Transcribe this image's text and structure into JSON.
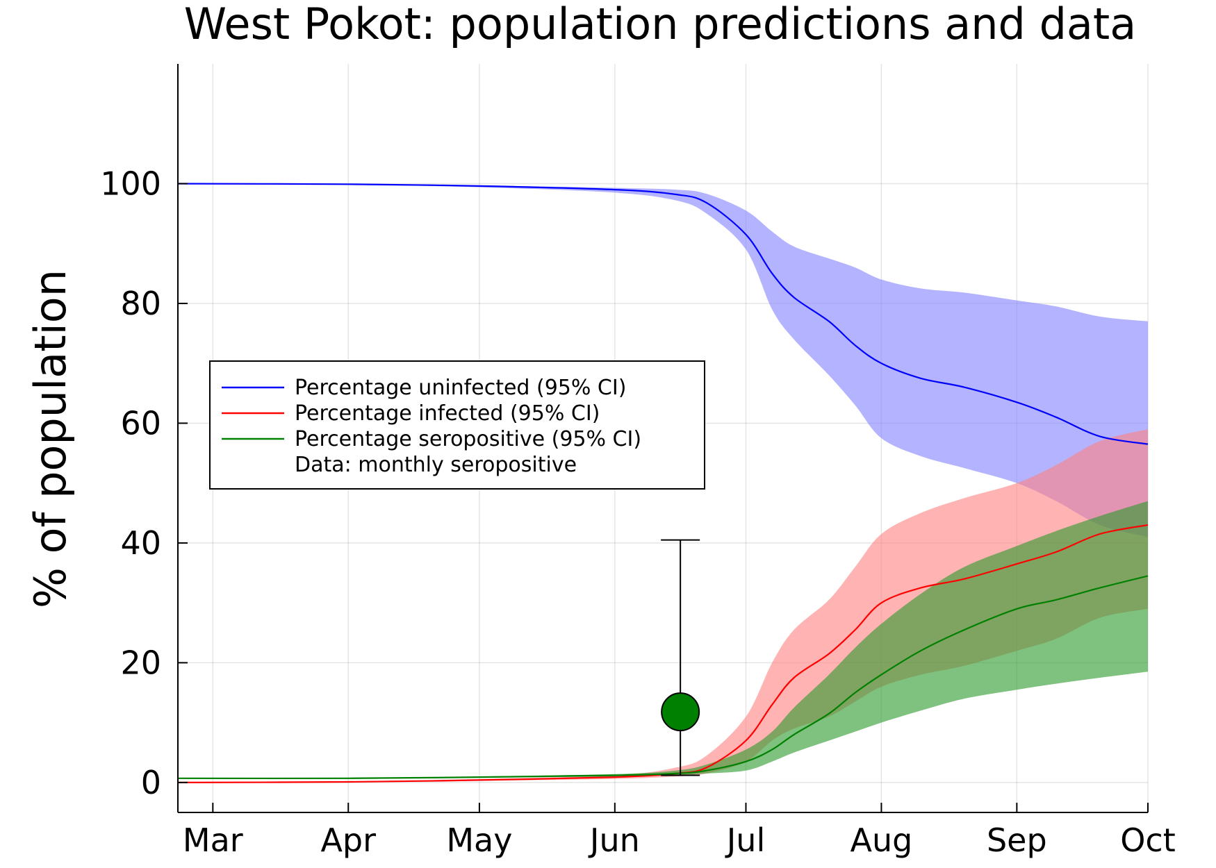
{
  "chart_data": {
    "type": "area",
    "title": "West Pokot: population predictions and data",
    "xlabel": "",
    "ylabel": "% of population",
    "x_unit": "date (2020)",
    "xlim": [
      "2020-02-22",
      "2020-10-01"
    ],
    "ylim": [
      -5,
      120
    ],
    "grid": true,
    "legend_position": "left",
    "x_ticks": [
      {
        "label": "Mar",
        "date": "2020-03-01"
      },
      {
        "label": "Apr",
        "date": "2020-04-01"
      },
      {
        "label": "May",
        "date": "2020-05-01"
      },
      {
        "label": "Jun",
        "date": "2020-06-01"
      },
      {
        "label": "Jul",
        "date": "2020-07-01"
      },
      {
        "label": "Aug",
        "date": "2020-08-01"
      },
      {
        "label": "Sep",
        "date": "2020-09-01"
      },
      {
        "label": "Oct",
        "date": "2020-10-01"
      }
    ],
    "y_ticks": [
      0,
      20,
      40,
      60,
      80,
      100
    ],
    "series": [
      {
        "name": "Percentage uninfected (95% CI)",
        "color": "#0000ff",
        "band_color": "#8080ff",
        "points": [
          {
            "date": "2020-02-22",
            "mean": 100.0,
            "lower": 100.0,
            "upper": 100.0
          },
          {
            "date": "2020-04-01",
            "mean": 99.9,
            "lower": 99.8,
            "upper": 100.0
          },
          {
            "date": "2020-05-01",
            "mean": 99.6,
            "lower": 99.4,
            "upper": 99.7
          },
          {
            "date": "2020-06-01",
            "mean": 99.0,
            "lower": 98.5,
            "upper": 99.3
          },
          {
            "date": "2020-06-15",
            "mean": 98.2,
            "lower": 97.2,
            "upper": 99.0
          },
          {
            "date": "2020-06-22",
            "mean": 96.8,
            "lower": 95.0,
            "upper": 98.3
          },
          {
            "date": "2020-07-01",
            "mean": 91.5,
            "lower": 89.0,
            "upper": 95.5
          },
          {
            "date": "2020-07-07",
            "mean": 85.0,
            "lower": 79.0,
            "upper": 92.0
          },
          {
            "date": "2020-07-12",
            "mean": 81.0,
            "lower": 74.0,
            "upper": 89.5
          },
          {
            "date": "2020-07-20",
            "mean": 77.0,
            "lower": 68.0,
            "upper": 87.5
          },
          {
            "date": "2020-07-26",
            "mean": 73.0,
            "lower": 63.0,
            "upper": 86.0
          },
          {
            "date": "2020-08-01",
            "mean": 70.0,
            "lower": 57.5,
            "upper": 84.0
          },
          {
            "date": "2020-08-10",
            "mean": 67.5,
            "lower": 54.5,
            "upper": 82.5
          },
          {
            "date": "2020-08-20",
            "mean": 66.0,
            "lower": 52.5,
            "upper": 81.8
          },
          {
            "date": "2020-09-01",
            "mean": 63.5,
            "lower": 50.0,
            "upper": 80.5
          },
          {
            "date": "2020-09-10",
            "mean": 61.0,
            "lower": 47.0,
            "upper": 79.5
          },
          {
            "date": "2020-09-20",
            "mean": 57.8,
            "lower": 43.0,
            "upper": 77.8
          },
          {
            "date": "2020-10-01",
            "mean": 56.5,
            "lower": 41.0,
            "upper": 77.0
          }
        ]
      },
      {
        "name": "Percentage infected (95% CI)",
        "color": "#ff0000",
        "band_color": "#ff8080",
        "points": [
          {
            "date": "2020-02-22",
            "mean": 0.0,
            "lower": 0.0,
            "upper": 0.0
          },
          {
            "date": "2020-04-01",
            "mean": 0.1,
            "lower": 0.05,
            "upper": 0.2
          },
          {
            "date": "2020-05-01",
            "mean": 0.4,
            "lower": 0.3,
            "upper": 0.6
          },
          {
            "date": "2020-06-01",
            "mean": 0.9,
            "lower": 0.6,
            "upper": 1.2
          },
          {
            "date": "2020-06-15",
            "mean": 1.5,
            "lower": 1.0,
            "upper": 2.5
          },
          {
            "date": "2020-06-22",
            "mean": 2.5,
            "lower": 1.5,
            "upper": 4.5
          },
          {
            "date": "2020-07-01",
            "mean": 7.0,
            "lower": 3.5,
            "upper": 11.0
          },
          {
            "date": "2020-07-07",
            "mean": 13.0,
            "lower": 7.0,
            "upper": 20.0
          },
          {
            "date": "2020-07-12",
            "mean": 17.5,
            "lower": 9.0,
            "upper": 25.5
          },
          {
            "date": "2020-07-20",
            "mean": 21.5,
            "lower": 11.0,
            "upper": 30.5
          },
          {
            "date": "2020-07-26",
            "mean": 25.5,
            "lower": 13.5,
            "upper": 36.0
          },
          {
            "date": "2020-08-01",
            "mean": 30.0,
            "lower": 16.0,
            "upper": 41.5
          },
          {
            "date": "2020-08-10",
            "mean": 32.5,
            "lower": 18.0,
            "upper": 45.0
          },
          {
            "date": "2020-08-20",
            "mean": 34.0,
            "lower": 19.5,
            "upper": 47.5
          },
          {
            "date": "2020-09-01",
            "mean": 36.5,
            "lower": 22.0,
            "upper": 50.0
          },
          {
            "date": "2020-09-10",
            "mean": 38.5,
            "lower": 24.0,
            "upper": 53.0
          },
          {
            "date": "2020-09-20",
            "mean": 41.5,
            "lower": 27.5,
            "upper": 57.0
          },
          {
            "date": "2020-10-01",
            "mean": 43.0,
            "lower": 29.0,
            "upper": 59.0
          }
        ]
      },
      {
        "name": "Percentage seropositive (95% CI)",
        "color": "#008000",
        "band_color": "#2a9a2a",
        "points": [
          {
            "date": "2020-02-22",
            "mean": 0.7,
            "lower": 0.7,
            "upper": 0.7
          },
          {
            "date": "2020-04-01",
            "mean": 0.7,
            "lower": 0.7,
            "upper": 0.7
          },
          {
            "date": "2020-05-01",
            "mean": 0.9,
            "lower": 0.8,
            "upper": 1.0
          },
          {
            "date": "2020-06-01",
            "mean": 1.2,
            "lower": 1.0,
            "upper": 1.4
          },
          {
            "date": "2020-06-15",
            "mean": 1.5,
            "lower": 1.2,
            "upper": 2.0
          },
          {
            "date": "2020-06-22",
            "mean": 2.0,
            "lower": 1.5,
            "upper": 3.0
          },
          {
            "date": "2020-07-01",
            "mean": 3.5,
            "lower": 2.0,
            "upper": 5.5
          },
          {
            "date": "2020-07-07",
            "mean": 5.5,
            "lower": 3.5,
            "upper": 8.5
          },
          {
            "date": "2020-07-12",
            "mean": 8.0,
            "lower": 5.0,
            "upper": 12.5
          },
          {
            "date": "2020-07-20",
            "mean": 11.5,
            "lower": 7.0,
            "upper": 18.0
          },
          {
            "date": "2020-07-26",
            "mean": 15.0,
            "lower": 8.5,
            "upper": 22.5
          },
          {
            "date": "2020-08-01",
            "mean": 18.0,
            "lower": 10.0,
            "upper": 26.5
          },
          {
            "date": "2020-08-10",
            "mean": 22.0,
            "lower": 12.0,
            "upper": 31.5
          },
          {
            "date": "2020-08-20",
            "mean": 25.5,
            "lower": 14.0,
            "upper": 36.0
          },
          {
            "date": "2020-09-01",
            "mean": 29.0,
            "lower": 15.5,
            "upper": 39.5
          },
          {
            "date": "2020-09-10",
            "mean": 30.5,
            "lower": 16.5,
            "upper": 42.0
          },
          {
            "date": "2020-09-20",
            "mean": 32.5,
            "lower": 17.5,
            "upper": 44.5
          },
          {
            "date": "2020-10-01",
            "mean": 34.5,
            "lower": 18.5,
            "upper": 47.0
          }
        ]
      }
    ],
    "data_points": [
      {
        "name": "Data: monthly seropositive",
        "color": "#008000",
        "date": "2020-06-16",
        "value": 11.8,
        "error_low": 1.2,
        "error_high": 40.5
      }
    ],
    "legend": [
      {
        "label": "Percentage uninfected (95% CI)",
        "color": "#0000ff",
        "marker": "line"
      },
      {
        "label": "Percentage infected (95% CI)",
        "color": "#ff0000",
        "marker": "line"
      },
      {
        "label": "Percentage seropositive (95% CI)",
        "color": "#008000",
        "marker": "line"
      },
      {
        "label": "Data: monthly seropositive",
        "color": "#008000",
        "marker": "none"
      }
    ]
  }
}
